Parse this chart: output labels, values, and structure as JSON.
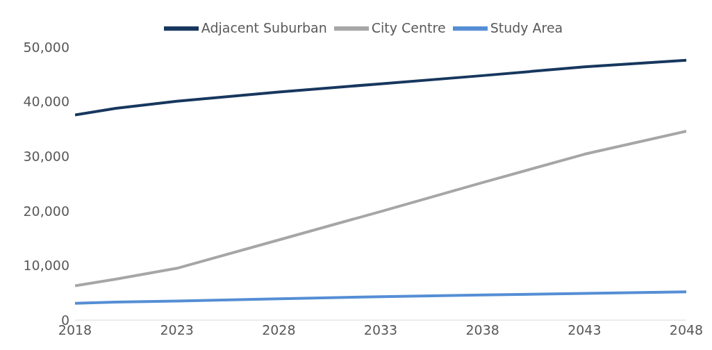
{
  "chart_data": {
    "type": "line",
    "legend": "top",
    "grid": false,
    "marker": "none",
    "line_style": "solid",
    "xlim": [
      2018,
      2048
    ],
    "xticks": [
      2018,
      2023,
      2028,
      2033,
      2038,
      2043,
      2048
    ],
    "ylim": [
      0,
      50000
    ],
    "yticks": [
      {
        "value": 0,
        "label": "0"
      },
      {
        "value": 10000,
        "label": "10,000"
      },
      {
        "value": 20000,
        "label": "20,000"
      },
      {
        "value": 30000,
        "label": "30,000"
      },
      {
        "value": 40000,
        "label": "40,000"
      },
      {
        "value": 50000,
        "label": "50,000"
      }
    ],
    "series": [
      {
        "name": "Study Area",
        "color": "#558ed5",
        "x": [
          2018,
          2020,
          2023,
          2028,
          2033,
          2038,
          2043,
          2048
        ],
        "values": [
          3100,
          3300,
          3500,
          3900,
          4300,
          4600,
          4900,
          5200
        ]
      },
      {
        "name": "Adjacent Suburban",
        "color": "#17375e",
        "x": [
          2018,
          2020,
          2023,
          2028,
          2033,
          2038,
          2043,
          2048
        ],
        "values": [
          37600,
          38800,
          40100,
          41800,
          43300,
          44800,
          46400,
          47600
        ]
      },
      {
        "name": "City Centre",
        "color": "#a6a6a6",
        "x": [
          2018,
          2020,
          2023,
          2028,
          2033,
          2038,
          2043,
          2048
        ],
        "values": [
          6300,
          7500,
          9500,
          14700,
          19900,
          25200,
          30400,
          34600
        ]
      }
    ]
  }
}
